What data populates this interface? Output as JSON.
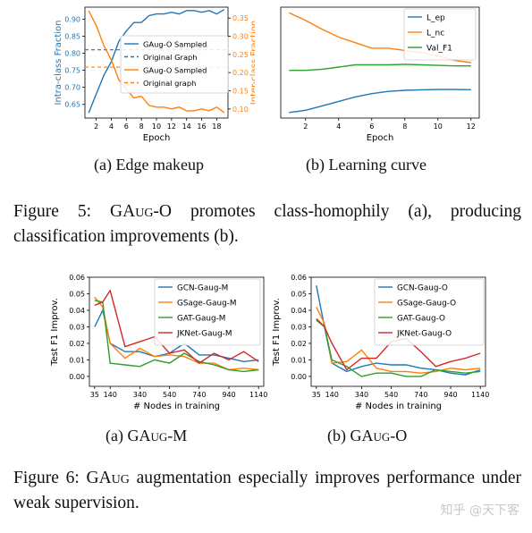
{
  "fig5": {
    "caption_prefix": "Figure 5: ",
    "caption_name": "GAug-O",
    "caption_rest": " promotes class-homophily (a), producing classification improvements (b)."
  },
  "fig6": {
    "caption_prefix": "Figure 6: ",
    "caption_name": "GAug",
    "caption_rest": " augmentation especially improves performance under weak supervision."
  },
  "subcaptions": {
    "a5": "(a) Edge makeup",
    "b5": "(b) Learning curve",
    "a6_label": "(a) ",
    "a6_name": "GAug-M",
    "b6_label": "(b) ",
    "b6_name": "GAug-O"
  },
  "watermark": "知乎 @天下客",
  "colors": {
    "blue": "#1f77b4",
    "orange": "#ff7f0e",
    "green": "#2ca02c",
    "red": "#d62728"
  },
  "chart_data": [
    {
      "type": "line",
      "xlabel": "Epoch",
      "ylabel": "Intra-class Fraction",
      "ylabel_right": "Inter-class Fraction",
      "xlim": [
        0.5,
        19.5
      ],
      "ylim": [
        0.61,
        0.935
      ],
      "ylim_right": [
        0.075,
        0.38
      ],
      "x_ticks": [
        2,
        4,
        6,
        8,
        10,
        12,
        14,
        16,
        18
      ],
      "y_ticks": [
        0.65,
        0.7,
        0.75,
        0.8,
        0.85,
        0.9
      ],
      "y_ticks_right": [
        0.1,
        0.15,
        0.2,
        0.25,
        0.3,
        0.35
      ],
      "legend_position": "center-right",
      "x": [
        1,
        2,
        3,
        4,
        5,
        6,
        7,
        8,
        9,
        10,
        11,
        12,
        13,
        14,
        15,
        16,
        17,
        18,
        19
      ],
      "series": [
        {
          "name": "GAug-O Sampled",
          "axis": "left",
          "color": "#1f77b4",
          "style": "solid",
          "values": [
            0.625,
            0.68,
            0.735,
            0.775,
            0.835,
            0.865,
            0.89,
            0.89,
            0.91,
            0.915,
            0.915,
            0.92,
            0.915,
            0.925,
            0.925,
            0.92,
            0.925,
            0.915,
            0.928
          ]
        },
        {
          "name": "Original Graph",
          "axis": "left",
          "color": "#1f77b4",
          "style": "dashed",
          "constant": 0.81
        },
        {
          "name": "GAug-O Sampled",
          "axis": "right",
          "color": "#ff7f0e",
          "style": "solid",
          "values": [
            0.37,
            0.33,
            0.275,
            0.235,
            0.18,
            0.155,
            0.13,
            0.135,
            0.11,
            0.105,
            0.105,
            0.1,
            0.105,
            0.095,
            0.095,
            0.1,
            0.095,
            0.105,
            0.09
          ]
        },
        {
          "name": "Original graph",
          "axis": "right",
          "color": "#ff7f0e",
          "style": "dashed",
          "constant": 0.215
        }
      ]
    },
    {
      "type": "line",
      "xlabel": "Epoch",
      "xlim": [
        0.5,
        12.5
      ],
      "ylim": [
        0,
        1
      ],
      "x_ticks": [
        2,
        4,
        6,
        8,
        10,
        12
      ],
      "legend_position": "top-right",
      "x": [
        1,
        2,
        3,
        4,
        5,
        6,
        7,
        8,
        9,
        10,
        11,
        12
      ],
      "series": [
        {
          "name": "L_ep",
          "color": "#1f77b4",
          "values": [
            0.05,
            0.07,
            0.11,
            0.15,
            0.19,
            0.22,
            0.24,
            0.25,
            0.255,
            0.257,
            0.257,
            0.256
          ]
        },
        {
          "name": "L_nc",
          "color": "#ff7f0e",
          "values": [
            0.95,
            0.88,
            0.8,
            0.73,
            0.68,
            0.63,
            0.63,
            0.61,
            0.59,
            0.56,
            0.52,
            0.5
          ]
        },
        {
          "name": "Val_F1",
          "color": "#2ca02c",
          "values": [
            0.43,
            0.43,
            0.44,
            0.46,
            0.48,
            0.48,
            0.48,
            0.485,
            0.48,
            0.475,
            0.47,
            0.47
          ]
        }
      ]
    },
    {
      "type": "line",
      "xlabel": "# Nodes in training",
      "ylabel": "Test F1 Improv.",
      "xlim": [
        0,
        1175
      ],
      "ylim": [
        -0.006,
        0.06
      ],
      "x_ticks": [
        35,
        140,
        340,
        540,
        740,
        940,
        1140
      ],
      "y_ticks": [
        0.0,
        0.01,
        0.02,
        0.03,
        0.04,
        0.05,
        0.06
      ],
      "legend_position": "top-right",
      "x": [
        35,
        90,
        140,
        240,
        340,
        440,
        540,
        640,
        740,
        840,
        940,
        1040,
        1140
      ],
      "series": [
        {
          "name": "GCN-Gaug-M",
          "color": "#1f77b4",
          "values": [
            0.03,
            0.04,
            0.02,
            0.015,
            0.015,
            0.012,
            0.014,
            0.02,
            0.013,
            0.013,
            0.011,
            0.009,
            0.01
          ]
        },
        {
          "name": "GSage-Gaug-M",
          "color": "#ff7f0e",
          "values": [
            0.048,
            0.042,
            0.02,
            0.011,
            0.017,
            0.012,
            0.013,
            0.012,
            0.008,
            0.008,
            0.004,
            0.005,
            0.004
          ]
        },
        {
          "name": "GAT-Gaug-M",
          "color": "#2ca02c",
          "values": [
            0.046,
            0.045,
            0.008,
            0.007,
            0.006,
            0.01,
            0.008,
            0.014,
            0.009,
            0.007,
            0.004,
            0.003,
            0.004
          ]
        },
        {
          "name": "JKNet-Gaug-M",
          "color": "#d62728",
          "values": [
            0.043,
            0.045,
            0.052,
            0.018,
            0.021,
            0.024,
            0.014,
            0.016,
            0.008,
            0.014,
            0.01,
            0.015,
            0.009
          ]
        }
      ]
    },
    {
      "type": "line",
      "xlabel": "# Nodes in training",
      "ylabel": "Test F1 Improv.",
      "xlim": [
        0,
        1175
      ],
      "ylim": [
        -0.006,
        0.06
      ],
      "x_ticks": [
        35,
        140,
        340,
        540,
        740,
        940,
        1140
      ],
      "y_ticks": [
        0.0,
        0.01,
        0.02,
        0.03,
        0.04,
        0.05,
        0.06
      ],
      "legend_position": "top-right",
      "x": [
        35,
        90,
        140,
        240,
        340,
        440,
        540,
        640,
        740,
        840,
        940,
        1040,
        1140
      ],
      "series": [
        {
          "name": "GCN-Gaug-O",
          "color": "#1f77b4",
          "values": [
            0.055,
            0.03,
            0.008,
            0.003,
            0.006,
            0.008,
            0.007,
            0.007,
            0.005,
            0.004,
            0.002,
            0.001,
            0.004
          ]
        },
        {
          "name": "GSage-Gaug-O",
          "color": "#ff7f0e",
          "values": [
            0.042,
            0.032,
            0.008,
            0.009,
            0.016,
            0.005,
            0.003,
            0.003,
            0.002,
            0.003,
            0.005,
            0.004,
            0.005
          ]
        },
        {
          "name": "GAT-Gaug-O",
          "color": "#2ca02c",
          "values": [
            0.034,
            0.03,
            0.01,
            0.006,
            0.0,
            0.002,
            0.002,
            0.0,
            0.0,
            0.004,
            0.003,
            0.002,
            0.003
          ]
        },
        {
          "name": "JKNet-Gaug-O",
          "color": "#d62728",
          "values": [
            0.035,
            0.03,
            0.02,
            0.004,
            0.011,
            0.011,
            0.021,
            0.023,
            0.015,
            0.006,
            0.009,
            0.011,
            0.014
          ]
        }
      ]
    }
  ]
}
